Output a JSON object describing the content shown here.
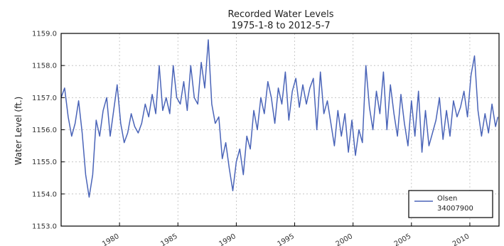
{
  "chart_data": {
    "type": "line",
    "title": "Recorded Water Levels",
    "subtitle": "1975-1-8 to 2012-5-7",
    "xlabel": "",
    "ylabel": "Water Level (ft.)",
    "xlim": [
      1975.0,
      2012.5
    ],
    "ylim": [
      1153.0,
      1159.0
    ],
    "x_ticks": [
      1980,
      1985,
      1990,
      1995,
      2000,
      2005,
      2010
    ],
    "y_ticks": [
      1153.0,
      1154.0,
      1155.0,
      1156.0,
      1157.0,
      1158.0,
      1159.0
    ],
    "y_tick_labels": [
      "1153.0",
      "1154.0",
      "1155.0",
      "1156.0",
      "1157.0",
      "1158.0",
      "1159.0"
    ],
    "grid": true,
    "legend": {
      "placement": "bottom-right",
      "label_lines": [
        "Olsen",
        "34007900"
      ]
    },
    "series": [
      {
        "name": "Olsen 34007900",
        "color": "#4a64b8",
        "x": [
          1975.0,
          1975.3,
          1975.6,
          1975.9,
          1976.2,
          1976.5,
          1976.8,
          1977.1,
          1977.4,
          1977.7,
          1978.0,
          1978.3,
          1978.6,
          1978.9,
          1979.2,
          1979.5,
          1979.8,
          1980.1,
          1980.4,
          1980.7,
          1981.0,
          1981.3,
          1981.6,
          1981.9,
          1982.2,
          1982.5,
          1982.8,
          1983.1,
          1983.4,
          1983.7,
          1984.0,
          1984.3,
          1984.6,
          1984.9,
          1985.2,
          1985.5,
          1985.8,
          1986.1,
          1986.4,
          1986.7,
          1987.0,
          1987.3,
          1987.6,
          1987.9,
          1988.2,
          1988.5,
          1988.8,
          1989.1,
          1989.4,
          1989.7,
          1990.0,
          1990.3,
          1990.6,
          1990.9,
          1991.2,
          1991.5,
          1991.8,
          1992.1,
          1992.4,
          1992.7,
          1993.0,
          1993.3,
          1993.6,
          1993.9,
          1994.2,
          1994.5,
          1994.8,
          1995.1,
          1995.4,
          1995.7,
          1996.0,
          1996.3,
          1996.6,
          1996.9,
          1997.2,
          1997.5,
          1997.8,
          1998.1,
          1998.4,
          1998.7,
          1999.0,
          1999.3,
          1999.6,
          1999.9,
          2000.2,
          2000.5,
          2000.8,
          2001.1,
          2001.4,
          2001.7,
          2002.0,
          2002.3,
          2002.6,
          2002.9,
          2003.2,
          2003.5,
          2003.8,
          2004.1,
          2004.4,
          2004.7,
          2005.0,
          2005.3,
          2005.6,
          2005.9,
          2006.2,
          2006.5,
          2006.8,
          2007.1,
          2007.4,
          2007.7,
          2008.0,
          2008.3,
          2008.6,
          2008.9,
          2009.2,
          2009.5,
          2009.8,
          2010.1,
          2010.4,
          2010.7,
          2011.0,
          2011.3,
          2011.6,
          2011.9,
          2012.2,
          2012.4
        ],
        "y": [
          1157.0,
          1157.3,
          1156.4,
          1155.8,
          1156.2,
          1156.9,
          1155.9,
          1154.6,
          1153.9,
          1154.6,
          1156.3,
          1155.8,
          1156.6,
          1157.0,
          1155.8,
          1156.6,
          1157.4,
          1156.2,
          1155.6,
          1155.9,
          1156.5,
          1156.1,
          1155.9,
          1156.2,
          1156.8,
          1156.4,
          1157.1,
          1156.5,
          1158.0,
          1156.6,
          1157.0,
          1156.5,
          1158.0,
          1157.0,
          1156.8,
          1157.5,
          1156.6,
          1158.0,
          1157.0,
          1156.8,
          1158.1,
          1157.3,
          1158.8,
          1156.8,
          1156.2,
          1156.4,
          1155.1,
          1155.6,
          1154.8,
          1154.1,
          1155.0,
          1155.4,
          1154.6,
          1155.8,
          1155.4,
          1156.6,
          1156.0,
          1157.0,
          1156.5,
          1157.5,
          1157.0,
          1156.2,
          1157.3,
          1156.8,
          1157.8,
          1156.3,
          1157.2,
          1157.6,
          1156.7,
          1157.4,
          1156.8,
          1157.3,
          1157.6,
          1156.0,
          1157.8,
          1156.5,
          1156.9,
          1156.2,
          1155.5,
          1156.6,
          1155.8,
          1156.5,
          1155.3,
          1156.3,
          1155.2,
          1156.0,
          1155.6,
          1158.0,
          1156.7,
          1156.0,
          1157.2,
          1156.5,
          1157.8,
          1156.0,
          1157.4,
          1156.5,
          1155.8,
          1157.1,
          1156.2,
          1155.5,
          1156.9,
          1155.8,
          1157.2,
          1155.3,
          1156.6,
          1155.5,
          1155.9,
          1156.3,
          1157.0,
          1155.7,
          1156.6,
          1155.8,
          1156.9,
          1156.4,
          1156.7,
          1157.2,
          1156.4,
          1157.7,
          1158.3,
          1156.6,
          1155.8,
          1156.5,
          1155.9,
          1156.8,
          1156.1,
          1156.4
        ]
      }
    ]
  }
}
